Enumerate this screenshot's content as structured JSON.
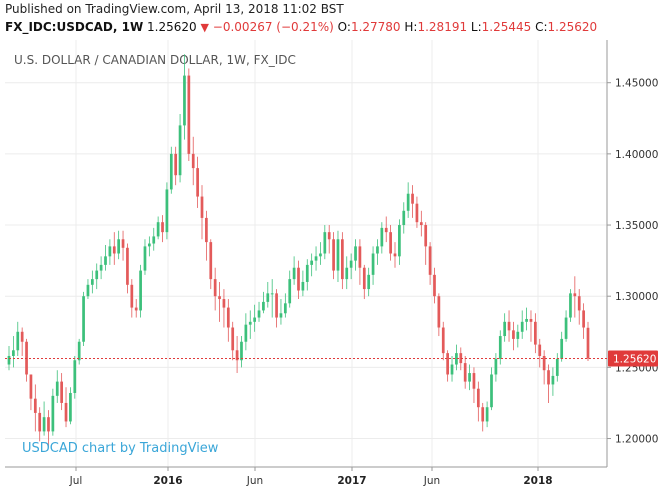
{
  "header": {
    "published": "Published on TradingView.com, April 13, 2018 11:02 BST",
    "symbol": "FX_IDC:USDCAD, 1W",
    "last": "1.25620",
    "arrow": "▼",
    "change": "−0.00267 (−0.21%)",
    "o_label": "O:",
    "o_value": "1.27780",
    "h_label": "H:",
    "h_value": "1.28191",
    "l_label": "L:",
    "l_value": "1.25445",
    "c_label": "C:",
    "c_value": "1.25620"
  },
  "chart_data": {
    "type": "candlestick",
    "title": "U.S. DOLLAR / CANADIAN DOLLAR, 1W, FX_IDC",
    "watermark": "USDCAD chart by TradingView",
    "ylim": [
      1.18,
      1.48
    ],
    "y_ticks": [
      "1.20000",
      "1.25000",
      "1.30000",
      "1.35000",
      "1.40000",
      "1.45000"
    ],
    "x_ticks": [
      {
        "label": "Jul",
        "bold": false
      },
      {
        "label": "2016",
        "bold": true
      },
      {
        "label": "Jun",
        "bold": false
      },
      {
        "label": "2017",
        "bold": true
      },
      {
        "label": "Jun",
        "bold": false
      },
      {
        "label": "2018",
        "bold": true
      }
    ],
    "last_price": 1.2562,
    "last_price_label": "1.25620",
    "up_color": "#3cc07b",
    "down_color": "#e35a5a",
    "series": [
      {
        "name": "close",
        "values": [
          1.258,
          1.262,
          1.275,
          1.268,
          1.245,
          1.228,
          1.218,
          1.205,
          1.215,
          1.205,
          1.23,
          1.24,
          1.225,
          1.212,
          1.232,
          1.255,
          1.268,
          1.3,
          1.308,
          1.312,
          1.318,
          1.322,
          1.328,
          1.335,
          1.33,
          1.34,
          1.334,
          1.308,
          1.292,
          1.29,
          1.318,
          1.335,
          1.337,
          1.342,
          1.352,
          1.345,
          1.375,
          1.4,
          1.385,
          1.42,
          1.455,
          1.4,
          1.39,
          1.37,
          1.355,
          1.338,
          1.312,
          1.3,
          1.298,
          1.292,
          1.278,
          1.262,
          1.255,
          1.268,
          1.28,
          1.282,
          1.285,
          1.29,
          1.296,
          1.302,
          1.302,
          1.285,
          1.288,
          1.295,
          1.312,
          1.32,
          1.304,
          1.31,
          1.322,
          1.325,
          1.328,
          1.33,
          1.345,
          1.34,
          1.318,
          1.34,
          1.312,
          1.32,
          1.325,
          1.335,
          1.32,
          1.305,
          1.315,
          1.33,
          1.335,
          1.348,
          1.345,
          1.33,
          1.328,
          1.35,
          1.36,
          1.372,
          1.365,
          1.352,
          1.35,
          1.335,
          1.315,
          1.3,
          1.278,
          1.26,
          1.245,
          1.252,
          1.26,
          1.253,
          1.24,
          1.246,
          1.235,
          1.222,
          1.212,
          1.222,
          1.245,
          1.256,
          1.272,
          1.282,
          1.276,
          1.27,
          1.275,
          1.282,
          1.284,
          1.282,
          1.266,
          1.258,
          1.248,
          1.238,
          1.244,
          1.256,
          1.27,
          1.285,
          1.302,
          1.3,
          1.29,
          1.278,
          1.2562
        ]
      },
      {
        "name": "high",
        "values": [
          1.265,
          1.272,
          1.282,
          1.278,
          1.27,
          1.244,
          1.238,
          1.222,
          1.226,
          1.22,
          1.235,
          1.248,
          1.246,
          1.236,
          1.236,
          1.258,
          1.27,
          1.303,
          1.312,
          1.318,
          1.323,
          1.328,
          1.336,
          1.34,
          1.345,
          1.346,
          1.346,
          1.337,
          1.312,
          1.298,
          1.322,
          1.34,
          1.342,
          1.348,
          1.356,
          1.357,
          1.38,
          1.405,
          1.405,
          1.428,
          1.47,
          1.46,
          1.412,
          1.398,
          1.378,
          1.36,
          1.34,
          1.32,
          1.31,
          1.305,
          1.298,
          1.282,
          1.272,
          1.272,
          1.288,
          1.29,
          1.294,
          1.296,
          1.303,
          1.31,
          1.312,
          1.305,
          1.298,
          1.302,
          1.318,
          1.328,
          1.325,
          1.318,
          1.326,
          1.33,
          1.335,
          1.338,
          1.35,
          1.35,
          1.345,
          1.346,
          1.345,
          1.328,
          1.33,
          1.34,
          1.34,
          1.322,
          1.32,
          1.335,
          1.34,
          1.352,
          1.356,
          1.35,
          1.338,
          1.354,
          1.366,
          1.38,
          1.378,
          1.37,
          1.36,
          1.352,
          1.338,
          1.32,
          1.302,
          1.282,
          1.262,
          1.258,
          1.266,
          1.264,
          1.258,
          1.252,
          1.25,
          1.24,
          1.225,
          1.226,
          1.25,
          1.26,
          1.276,
          1.288,
          1.29,
          1.282,
          1.28,
          1.29,
          1.292,
          1.29,
          1.288,
          1.27,
          1.262,
          1.252,
          1.25,
          1.26,
          1.275,
          1.29,
          1.305,
          1.314,
          1.305,
          1.295,
          1.282
        ]
      },
      {
        "name": "low",
        "values": [
          1.248,
          1.25,
          1.258,
          1.258,
          1.24,
          1.22,
          1.205,
          1.198,
          1.202,
          1.194,
          1.202,
          1.225,
          1.22,
          1.208,
          1.21,
          1.228,
          1.252,
          1.265,
          1.298,
          1.302,
          1.305,
          1.312,
          1.318,
          1.322,
          1.322,
          1.326,
          1.325,
          1.302,
          1.285,
          1.285,
          1.285,
          1.315,
          1.328,
          1.332,
          1.34,
          1.338,
          1.34,
          1.372,
          1.378,
          1.38,
          1.41,
          1.395,
          1.378,
          1.362,
          1.34,
          1.325,
          1.305,
          1.29,
          1.282,
          1.278,
          1.268,
          1.255,
          1.246,
          1.25,
          1.262,
          1.27,
          1.275,
          1.282,
          1.288,
          1.292,
          1.285,
          1.278,
          1.28,
          1.285,
          1.292,
          1.308,
          1.298,
          1.3,
          1.304,
          1.314,
          1.318,
          1.322,
          1.326,
          1.33,
          1.312,
          1.31,
          1.305,
          1.305,
          1.312,
          1.318,
          1.308,
          1.298,
          1.3,
          1.308,
          1.322,
          1.33,
          1.338,
          1.325,
          1.32,
          1.322,
          1.344,
          1.355,
          1.355,
          1.348,
          1.342,
          1.322,
          1.308,
          1.295,
          1.272,
          1.255,
          1.24,
          1.24,
          1.248,
          1.248,
          1.235,
          1.234,
          1.225,
          1.212,
          1.205,
          1.208,
          1.22,
          1.24,
          1.252,
          1.268,
          1.268,
          1.262,
          1.264,
          1.27,
          1.276,
          1.268,
          1.26,
          1.25,
          1.238,
          1.225,
          1.23,
          1.24,
          1.254,
          1.268,
          1.282,
          1.285,
          1.28,
          1.27,
          1.25445
        ]
      },
      {
        "name": "open",
        "values": [
          1.252,
          1.258,
          1.262,
          1.275,
          1.268,
          1.245,
          1.228,
          1.218,
          1.205,
          1.215,
          1.205,
          1.23,
          1.24,
          1.225,
          1.212,
          1.232,
          1.255,
          1.268,
          1.3,
          1.308,
          1.312,
          1.318,
          1.322,
          1.328,
          1.335,
          1.33,
          1.34,
          1.334,
          1.308,
          1.292,
          1.29,
          1.318,
          1.335,
          1.337,
          1.342,
          1.352,
          1.345,
          1.375,
          1.4,
          1.385,
          1.42,
          1.455,
          1.4,
          1.39,
          1.37,
          1.355,
          1.338,
          1.312,
          1.3,
          1.298,
          1.292,
          1.278,
          1.262,
          1.255,
          1.268,
          1.28,
          1.282,
          1.285,
          1.29,
          1.296,
          1.302,
          1.302,
          1.285,
          1.288,
          1.295,
          1.312,
          1.32,
          1.304,
          1.31,
          1.322,
          1.325,
          1.328,
          1.33,
          1.345,
          1.34,
          1.318,
          1.34,
          1.312,
          1.32,
          1.325,
          1.335,
          1.32,
          1.305,
          1.315,
          1.33,
          1.335,
          1.348,
          1.345,
          1.33,
          1.328,
          1.35,
          1.36,
          1.372,
          1.365,
          1.352,
          1.35,
          1.335,
          1.315,
          1.3,
          1.278,
          1.26,
          1.245,
          1.252,
          1.26,
          1.253,
          1.24,
          1.246,
          1.235,
          1.222,
          1.212,
          1.222,
          1.245,
          1.256,
          1.272,
          1.282,
          1.276,
          1.27,
          1.275,
          1.282,
          1.284,
          1.282,
          1.266,
          1.258,
          1.248,
          1.238,
          1.244,
          1.256,
          1.27,
          1.285,
          1.302,
          1.3,
          1.29,
          1.2778
        ]
      }
    ]
  }
}
